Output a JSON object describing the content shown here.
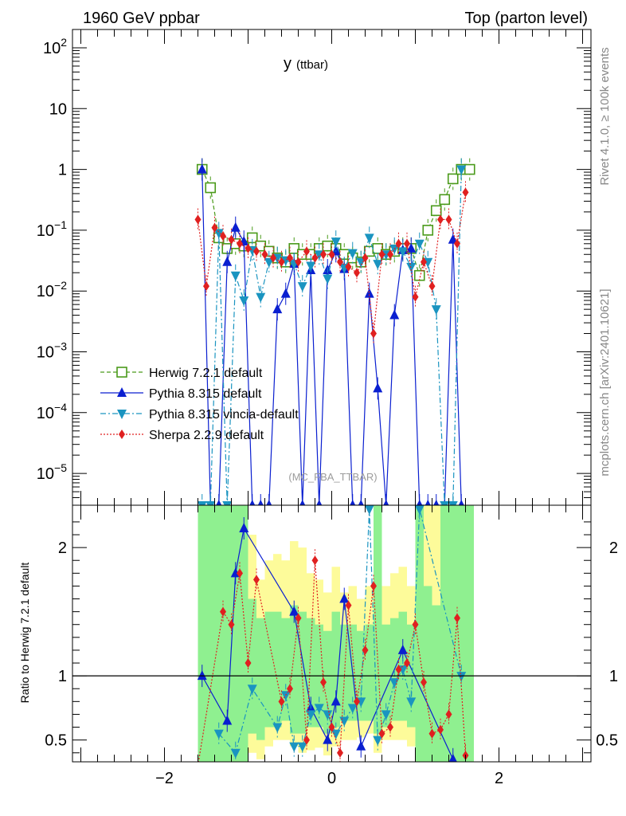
{
  "header": {
    "left": "1960 GeV ppbar",
    "right": "Top (parton level)"
  },
  "side": {
    "rivet": "Rivet 4.1.0, ≥ 100k events",
    "mcplots": "mcplots.cern.ch [arXiv:2401.10621]"
  },
  "chart_data": [
    {
      "type": "line",
      "panel": "main",
      "title_main": "y",
      "title_sub": "(ttbar)",
      "watermark": "(MC_FBA_TTBAR)",
      "yscale": "log",
      "xlim": [
        -3.1,
        3.1
      ],
      "ylim": [
        3e-06,
        200
      ],
      "xticks": [
        -2,
        0,
        2
      ],
      "xtick_labels": [
        "−2",
        "0",
        "2"
      ],
      "ytick_labels": [
        {
          "base": "10",
          "exp": "−5",
          "value": 1e-05
        },
        {
          "base": "10",
          "exp": "−4",
          "value": 0.0001
        },
        {
          "base": "10",
          "exp": "−3",
          "value": 0.001
        },
        {
          "base": "10",
          "exp": "−2",
          "value": 0.01
        },
        {
          "base": "10",
          "exp": "−1",
          "value": 0.1
        },
        {
          "base": "1",
          "exp": "",
          "value": 1
        },
        {
          "base": "10",
          "exp": "",
          "value": 10
        },
        {
          "base": "10",
          "exp": "2",
          "value": 100
        }
      ],
      "series": [
        {
          "name": "Herwig 7.2.1 default",
          "color": "#4a9a1a",
          "marker": "square-open",
          "dash": "5,3",
          "x": [
            -1.55,
            -1.45,
            -1.35,
            -1.25,
            -1.15,
            -1.05,
            -0.95,
            -0.85,
            -0.75,
            -0.65,
            -0.55,
            -0.45,
            -0.35,
            -0.25,
            -0.15,
            -0.05,
            0.05,
            0.15,
            0.25,
            0.35,
            0.45,
            0.55,
            0.65,
            0.75,
            0.85,
            0.95,
            1.05,
            1.15,
            1.25,
            1.35,
            1.45,
            1.55,
            1.65
          ],
          "y": [
            1.0,
            0.5,
            0.075,
            0.05,
            0.06,
            0.055,
            0.075,
            0.055,
            0.045,
            0.035,
            0.03,
            0.05,
            0.04,
            0.04,
            0.05,
            0.055,
            0.05,
            0.04,
            0.035,
            0.03,
            0.045,
            0.05,
            0.04,
            0.045,
            0.05,
            0.05,
            0.018,
            0.1,
            0.21,
            0.32,
            0.7,
            1.0,
            1.0
          ]
        },
        {
          "name": "Pythia 8.315 default",
          "color": "#0a1fd0",
          "marker": "triangle-up",
          "dash": "",
          "x": [
            -1.55,
            -1.45,
            -1.35,
            -1.25,
            -1.15,
            -1.05,
            -0.95,
            -0.85,
            -0.75,
            -0.65,
            -0.55,
            -0.45,
            -0.35,
            -0.25,
            -0.15,
            -0.05,
            0.05,
            0.15,
            0.25,
            0.35,
            0.45,
            0.55,
            0.65,
            0.75,
            0.85,
            0.95,
            1.05,
            1.15,
            1.25,
            1.35,
            1.45,
            1.55
          ],
          "y": [
            1.0,
            3e-06,
            3e-06,
            0.03,
            0.11,
            0.065,
            3e-06,
            3e-06,
            3e-06,
            0.005,
            0.009,
            0.028,
            3e-06,
            0.022,
            3e-06,
            0.022,
            0.045,
            0.023,
            3e-06,
            3e-06,
            0.009,
            0.00025,
            3e-06,
            0.004,
            0.047,
            0.05,
            3e-06,
            3e-06,
            3e-06,
            3e-06,
            0.07,
            3e-06
          ]
        },
        {
          "name": "Pythia 8.315 vincia-default",
          "color": "#1a94c0",
          "marker": "triangle-down",
          "dash": "7,3,2,3",
          "x": [
            -1.55,
            -1.45,
            -1.35,
            -1.25,
            -1.15,
            -1.05,
            -0.95,
            -0.85,
            -0.75,
            -0.65,
            -0.55,
            -0.45,
            -0.35,
            -0.25,
            -0.15,
            -0.05,
            0.05,
            0.15,
            0.25,
            0.35,
            0.45,
            0.55,
            0.65,
            0.75,
            0.85,
            0.95,
            1.05,
            1.15,
            1.25,
            1.35,
            1.45,
            1.55
          ],
          "y": [
            3e-06,
            3e-06,
            0.09,
            3e-06,
            0.018,
            0.007,
            0.047,
            0.008,
            0.03,
            0.035,
            0.032,
            0.028,
            0.012,
            0.026,
            0.04,
            0.016,
            0.065,
            0.024,
            0.042,
            0.03,
            0.075,
            0.028,
            0.04,
            0.05,
            0.045,
            0.025,
            0.06,
            0.03,
            0.005,
            3e-06,
            3e-06,
            1.0
          ]
        },
        {
          "name": "Sherpa 2.2.9 default",
          "color": "#e02020",
          "marker": "diamond",
          "dash": "2,2",
          "x": [
            -1.6,
            -1.5,
            -1.4,
            -1.3,
            -1.2,
            -1.1,
            -1.0,
            -0.9,
            -0.8,
            -0.7,
            -0.6,
            -0.5,
            -0.4,
            -0.3,
            -0.2,
            -0.1,
            0.0,
            0.1,
            0.2,
            0.3,
            0.4,
            0.5,
            0.6,
            0.7,
            0.8,
            0.9,
            1.0,
            1.1,
            1.2,
            1.3,
            1.4,
            1.5,
            1.6
          ],
          "y": [
            0.15,
            0.012,
            0.11,
            0.08,
            0.07,
            0.06,
            0.05,
            0.045,
            0.04,
            0.035,
            0.03,
            0.035,
            0.03,
            0.045,
            0.035,
            0.04,
            0.04,
            0.03,
            0.025,
            0.02,
            0.035,
            0.002,
            0.04,
            0.04,
            0.06,
            0.06,
            0.008,
            0.03,
            0.012,
            0.15,
            0.15,
            0.06,
            0.42
          ]
        }
      ]
    },
    {
      "type": "line",
      "panel": "ratio",
      "ylabel": "Ratio to Herwig 7.2.1 default",
      "ylim": [
        0.33,
        2.33
      ],
      "yticks": [
        0.5,
        1,
        2
      ],
      "ytick_labels": [
        "0.5",
        "1",
        "2"
      ],
      "reference": 1,
      "band": {
        "x_edges": [
          -1.6,
          -1.5,
          -1.4,
          -1.3,
          -1.2,
          -1.1,
          -1.0,
          -0.9,
          -0.8,
          -0.7,
          -0.6,
          -0.5,
          -0.4,
          -0.3,
          -0.2,
          -0.1,
          0.0,
          0.1,
          0.2,
          0.3,
          0.4,
          0.5,
          0.6,
          0.7,
          0.8,
          0.9,
          1.0,
          1.1,
          1.2,
          1.3,
          1.4,
          1.5,
          1.6,
          1.7
        ],
        "yellow_lo": [
          0.33,
          0.33,
          0.33,
          0.33,
          0.33,
          0.33,
          0.4,
          0.35,
          0.45,
          0.5,
          0.5,
          0.45,
          0.4,
          0.42,
          0.44,
          0.38,
          0.45,
          0.5,
          0.5,
          0.52,
          0.55,
          0.4,
          0.5,
          0.5,
          0.5,
          0.45,
          0.33,
          0.33,
          0.33,
          0.33,
          0.33,
          0.33,
          0.33
        ],
        "yellow_hi": [
          2.33,
          2.33,
          2.33,
          2.33,
          2.33,
          2.33,
          2.1,
          1.75,
          1.9,
          1.95,
          1.9,
          2.05,
          2.0,
          1.8,
          1.75,
          1.65,
          1.85,
          1.65,
          1.7,
          1.6,
          1.7,
          2.33,
          1.7,
          1.8,
          1.85,
          1.7,
          2.33,
          2.33,
          2.33,
          2.33,
          2.33,
          2.33,
          2.33
        ],
        "green_lo": [
          0.33,
          0.33,
          0.33,
          0.33,
          0.33,
          0.33,
          0.55,
          0.5,
          0.6,
          0.6,
          0.65,
          0.55,
          0.55,
          0.6,
          0.6,
          0.55,
          0.6,
          0.65,
          0.65,
          0.65,
          0.65,
          0.55,
          0.6,
          0.65,
          0.65,
          0.6,
          0.33,
          0.33,
          0.33,
          0.33,
          0.33,
          0.33,
          0.33
        ],
        "green_hi": [
          2.33,
          2.33,
          2.33,
          2.33,
          2.33,
          2.33,
          1.6,
          1.45,
          1.5,
          1.5,
          1.45,
          1.55,
          1.5,
          1.45,
          1.4,
          1.35,
          1.5,
          1.4,
          1.4,
          1.35,
          1.4,
          2.33,
          1.4,
          1.45,
          1.5,
          1.4,
          2.33,
          1.7,
          1.55,
          2.33,
          2.33,
          2.33,
          2.33
        ]
      },
      "series": [
        {
          "name": "Pythia 8.315 default",
          "color": "#0a1fd0",
          "marker": "triangle-up",
          "dash": "",
          "x": [
            -1.55,
            -1.25,
            -1.15,
            -1.05,
            -0.45,
            -0.25,
            -0.05,
            0.05,
            0.15,
            0.35,
            0.85,
            1.45
          ],
          "y": [
            1.0,
            0.65,
            1.8,
            2.15,
            1.5,
            0.75,
            0.5,
            0.8,
            1.6,
            0.45,
            1.2,
            0.35
          ]
        },
        {
          "name": "Pythia 8.315 vincia-default",
          "color": "#1a94c0",
          "marker": "triangle-down",
          "dash": "7,3,2,3",
          "x": [
            -1.35,
            -1.15,
            -0.95,
            -0.65,
            -0.55,
            -0.45,
            -0.35,
            -0.25,
            -0.15,
            -0.05,
            0.05,
            0.15,
            0.25,
            0.35,
            0.45,
            0.55,
            0.65,
            0.75,
            0.85,
            0.95,
            1.05,
            1.55
          ],
          "y": [
            0.55,
            0.4,
            0.9,
            0.6,
            0.85,
            0.45,
            0.45,
            0.7,
            0.75,
            0.7,
            0.55,
            0.65,
            0.75,
            0.8,
            2.3,
            0.5,
            0.7,
            0.95,
            1.05,
            0.8,
            2.3,
            1.0
          ]
        },
        {
          "name": "Sherpa 2.2.9 default",
          "color": "#e02020",
          "marker": "diamond",
          "dash": "2,2",
          "x": [
            -1.6,
            -1.3,
            -1.2,
            -1.1,
            -1.0,
            -0.9,
            -0.6,
            -0.5,
            -0.4,
            -0.3,
            -0.2,
            -0.1,
            0.0,
            0.1,
            0.2,
            0.3,
            0.4,
            0.5,
            0.6,
            0.7,
            0.8,
            0.9,
            1.0,
            1.1,
            1.2,
            1.3,
            1.4,
            1.5,
            1.6
          ],
          "y": [
            0.3,
            1.5,
            1.4,
            1.8,
            1.1,
            1.75,
            0.8,
            0.9,
            1.45,
            0.5,
            1.9,
            0.95,
            0.6,
            0.4,
            1.55,
            0.8,
            1.2,
            1.7,
            0.55,
            0.6,
            1.05,
            1.1,
            1.4,
            0.95,
            0.55,
            0.58,
            0.7,
            1.45,
            0.38
          ]
        }
      ]
    }
  ]
}
